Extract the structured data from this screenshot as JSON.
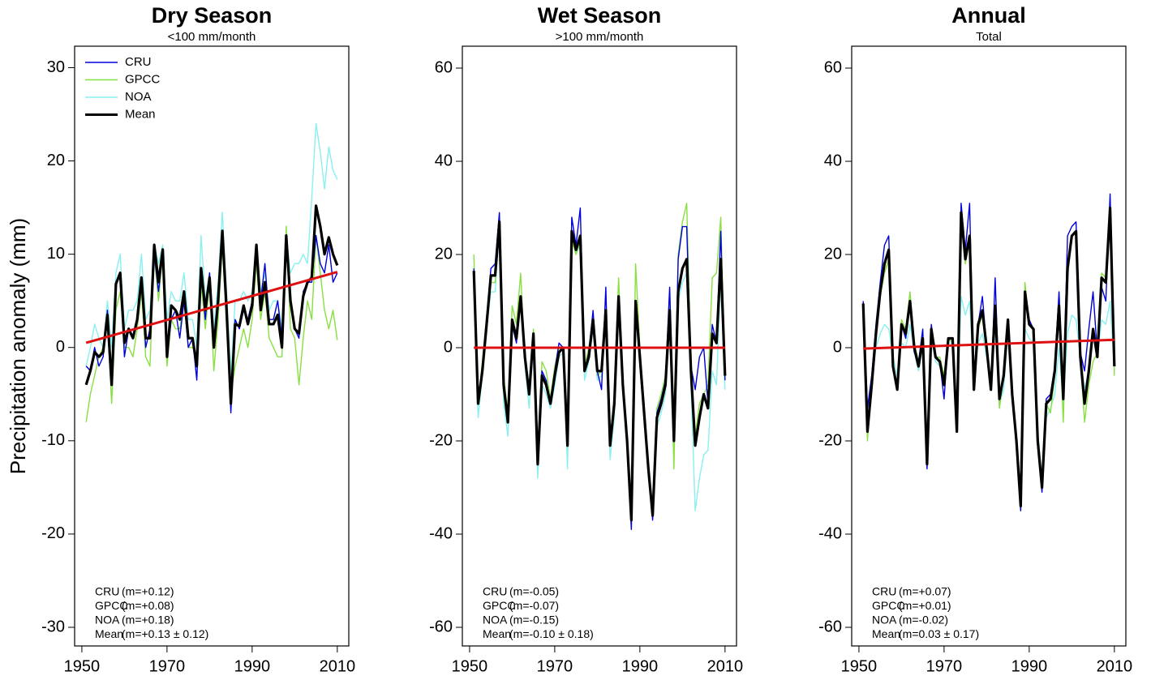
{
  "chart_data": [
    {
      "type": "line",
      "title": "Dry Season",
      "subtitle": "<100 mm/month",
      "ylabel": "Precipitation anomaly (mm)",
      "legend": "top-left",
      "x": [
        1951,
        1952,
        1953,
        1954,
        1955,
        1956,
        1957,
        1958,
        1959,
        1960,
        1961,
        1962,
        1963,
        1964,
        1965,
        1966,
        1967,
        1968,
        1969,
        1970,
        1971,
        1972,
        1973,
        1974,
        1975,
        1976,
        1977,
        1978,
        1979,
        1980,
        1981,
        1982,
        1983,
        1984,
        1985,
        1986,
        1987,
        1988,
        1989,
        1990,
        1991,
        1992,
        1993,
        1994,
        1995,
        1996,
        1997,
        1998,
        1999,
        2000,
        2001,
        2002,
        2003,
        2004,
        2005,
        2006,
        2007,
        2008,
        2009,
        2010
      ],
      "xlim": [
        1948.3,
        2012.7
      ],
      "xticks": [
        1950,
        1970,
        1990,
        2010
      ],
      "ylim": [
        -32,
        32.3
      ],
      "yticks": [
        -30,
        -20,
        -10,
        0,
        10,
        20,
        30
      ],
      "series": [
        {
          "name": "CRU",
          "color": "#0000dd",
          "values": [
            -2,
            -2.5,
            0,
            -2,
            -1,
            4,
            -3,
            7,
            8,
            -1,
            2,
            1,
            3,
            7,
            0,
            2,
            10,
            6,
            10,
            -1,
            3,
            4,
            1,
            5,
            0,
            1,
            -3.5,
            8,
            3,
            8,
            0,
            5,
            12,
            4,
            -7,
            3,
            2,
            4,
            3,
            5,
            11,
            5,
            9,
            3,
            3,
            5,
            1,
            12,
            5,
            2,
            1,
            6,
            7,
            7,
            12,
            9,
            8,
            11,
            7,
            8
          ]
        },
        {
          "name": "GPCC",
          "color": "#88e040",
          "values": [
            -8,
            -5,
            -3,
            -1,
            0,
            3,
            -6,
            4,
            6,
            0,
            0,
            -1,
            2,
            6,
            -1,
            -2,
            10,
            5,
            10,
            -2,
            3,
            2,
            2,
            5,
            0,
            0,
            -1,
            7,
            2,
            7,
            -2.5,
            3,
            11,
            2,
            -5,
            -2,
            0,
            2,
            0,
            3,
            9,
            3,
            6,
            1,
            0,
            -1,
            -1,
            13,
            2,
            1,
            -4,
            1,
            5,
            3,
            12,
            8,
            4,
            2,
            4,
            0.8
          ]
        },
        {
          "name": "NOA",
          "color": "#88f0f0",
          "values": [
            -2,
            0,
            2.5,
            1,
            0,
            5,
            0,
            8,
            10,
            2,
            4,
            4,
            5,
            10,
            3,
            4,
            11,
            9,
            11,
            3,
            6,
            5,
            5,
            8,
            3,
            3,
            0,
            12,
            5,
            8,
            2,
            7,
            14.5,
            6,
            -3,
            5,
            5,
            6,
            5,
            6,
            11,
            6,
            8,
            4,
            5,
            5,
            2,
            12,
            8,
            9,
            9,
            10,
            9,
            16,
            24,
            21,
            17,
            21.5,
            19,
            18
          ]
        },
        {
          "name": "Mean",
          "color": "#000000",
          "values": [
            -4,
            -2.5,
            -0.5,
            -1,
            -0.5,
            3.5,
            -4,
            6.8,
            8,
            0.5,
            2,
            1,
            3,
            7.5,
            1,
            1,
            11,
            7,
            10.5,
            -1,
            4.5,
            4,
            3,
            6,
            1,
            1,
            -2,
            8.5,
            4,
            7.5,
            0,
            5,
            12.5,
            4,
            -6,
            2.5,
            2.3,
            4.5,
            2.5,
            4.5,
            11,
            4,
            7,
            2.5,
            2.5,
            3.5,
            0,
            12,
            5,
            2,
            1.5,
            5.5,
            7,
            7.5,
            15.2,
            13,
            10,
            11.8,
            10,
            8.8
          ]
        }
      ],
      "trend": {
        "color": "#dd1111",
        "x": [
          1951,
          2010
        ],
        "values": [
          0.5,
          8.1
        ]
      },
      "stats": [
        {
          "name": "CRU",
          "label": "(m=+0.12)"
        },
        {
          "name": "GPCC",
          "label": "(m=+0.08)"
        },
        {
          "name": "NOA",
          "label": "(m=+0.18)"
        },
        {
          "name": "Mean",
          "label": "(m=+0.13 ± 0.12)"
        }
      ]
    },
    {
      "type": "line",
      "title": "Wet Season",
      "subtitle": ">100 mm/month",
      "x": [
        1951,
        1952,
        1953,
        1954,
        1955,
        1956,
        1957,
        1958,
        1959,
        1960,
        1961,
        1962,
        1963,
        1964,
        1965,
        1966,
        1967,
        1968,
        1969,
        1970,
        1971,
        1972,
        1973,
        1974,
        1975,
        1976,
        1977,
        1978,
        1979,
        1980,
        1981,
        1982,
        1983,
        1984,
        1985,
        1986,
        1987,
        1988,
        1989,
        1990,
        1991,
        1992,
        1993,
        1994,
        1995,
        1996,
        1997,
        1998,
        1999,
        2000,
        2001,
        2002,
        2003,
        2004,
        2005,
        2006,
        2007,
        2008,
        2009,
        2010
      ],
      "xlim": [
        1948.3,
        2012.7
      ],
      "xticks": [
        1950,
        1970,
        1990,
        2010
      ],
      "ylim": [
        -64,
        64.7
      ],
      "yticks": [
        -60,
        -40,
        -20,
        0,
        20,
        40,
        60
      ],
      "series": [
        {
          "name": "CRU",
          "color": "#0000dd",
          "values": [
            17,
            -12,
            -4,
            6,
            17,
            18,
            29,
            -8,
            -16,
            5,
            1,
            11,
            -2,
            -10,
            3,
            -25,
            -5,
            -7,
            -12,
            -5,
            1,
            0,
            -21,
            28,
            22,
            30,
            -5,
            -1,
            8,
            -5,
            -9,
            13,
            -21,
            -12,
            11,
            -7,
            -20,
            -39,
            9,
            -2,
            -13,
            -26,
            -37,
            -14,
            -11,
            -7,
            13,
            -20,
            19,
            26,
            26,
            -4,
            -9,
            -2,
            0,
            -12,
            5,
            1,
            25,
            -7
          ]
        },
        {
          "name": "GPCC",
          "color": "#88e040",
          "values": [
            20,
            -12,
            -3,
            7,
            14,
            14,
            26,
            -6,
            -14,
            9,
            5,
            16,
            -3,
            -9,
            4,
            -22,
            -3,
            -5,
            -11,
            -4,
            0,
            0,
            -20,
            23,
            20,
            23,
            -4,
            0,
            6,
            -6,
            -5,
            7,
            -20,
            -10,
            15,
            -7,
            -19,
            -36,
            18,
            0,
            -12,
            -25,
            -35,
            -13,
            -10,
            -6,
            10,
            -26,
            20,
            27,
            31,
            -3,
            -19,
            -12,
            -10,
            -8,
            15,
            16,
            28,
            -6
          ]
        },
        {
          "name": "NOA",
          "color": "#88f0f0",
          "values": [
            16,
            -15,
            -6,
            4,
            12,
            12,
            26,
            -12,
            -19,
            4,
            2,
            10,
            -4,
            -13,
            1,
            -28,
            -8,
            -10,
            -13,
            -8,
            -2,
            -1,
            -26,
            24,
            20,
            22,
            -7,
            -3,
            4,
            -7,
            -6,
            6,
            -24,
            -15,
            9,
            -9,
            -22,
            -37,
            8,
            -4,
            -16,
            -28,
            -36,
            -17,
            -14,
            -10,
            6,
            -23,
            10,
            14,
            16,
            -8,
            -35,
            -28,
            -23,
            -22,
            -5,
            -8,
            15,
            -9
          ]
        },
        {
          "name": "Mean",
          "color": "#000000",
          "values": [
            16.5,
            -12,
            -5,
            5,
            15.5,
            15.5,
            27,
            -8,
            -16,
            6,
            2,
            11,
            -2,
            -10,
            3,
            -25,
            -6,
            -8,
            -12,
            -6,
            -1,
            0,
            -21,
            25,
            21,
            24,
            -5,
            -2,
            6,
            -5,
            -5,
            8,
            -21,
            -12,
            11,
            -8,
            -20,
            -37,
            10,
            -2,
            -14,
            -26,
            -36,
            -15,
            -12,
            -8,
            8,
            -20,
            12,
            17,
            19,
            -5,
            -21,
            -15,
            -10,
            -13,
            3,
            1,
            19,
            -6
          ]
        }
      ],
      "trend": {
        "color": "#dd1111",
        "x": [
          1951,
          2010
        ],
        "values": [
          0,
          0
        ]
      },
      "stats": [
        {
          "name": "CRU",
          "label": "(m=-0.05)"
        },
        {
          "name": "GPCC",
          "label": "(m=-0.07)"
        },
        {
          "name": "NOA",
          "label": "(m=-0.15)"
        },
        {
          "name": "Mean",
          "label": "(m=-0.10 ± 0.18)"
        }
      ]
    },
    {
      "type": "line",
      "title": "Annual",
      "subtitle": "Total",
      "x": [
        1951,
        1952,
        1953,
        1954,
        1955,
        1956,
        1957,
        1958,
        1959,
        1960,
        1961,
        1962,
        1963,
        1964,
        1965,
        1966,
        1967,
        1968,
        1969,
        1970,
        1971,
        1972,
        1973,
        1974,
        1975,
        1976,
        1977,
        1978,
        1979,
        1980,
        1981,
        1982,
        1983,
        1984,
        1985,
        1986,
        1987,
        1988,
        1989,
        1990,
        1991,
        1992,
        1993,
        1994,
        1995,
        1996,
        1997,
        1998,
        1999,
        2000,
        2001,
        2002,
        2003,
        2004,
        2005,
        2006,
        2007,
        2008,
        2009,
        2010
      ],
      "xlim": [
        1948.3,
        2012.7
      ],
      "xticks": [
        1950,
        1970,
        1990,
        2010
      ],
      "ylim": [
        -64,
        64.7
      ],
      "yticks": [
        -60,
        -40,
        -20,
        0,
        20,
        40,
        60
      ],
      "series": [
        {
          "name": "CRU",
          "color": "#0000dd",
          "values": [
            10,
            -13,
            -6,
            5,
            14,
            22,
            24,
            -4,
            -9,
            5,
            2,
            10,
            -1,
            -3,
            4,
            -26,
            5,
            -2,
            -3,
            -11,
            2,
            2,
            -18,
            31,
            21,
            31,
            -9,
            5,
            11,
            0,
            -9,
            15,
            -11,
            -5,
            6,
            -10,
            -21,
            -35,
            12,
            6,
            4,
            -20,
            -31,
            -11,
            -10,
            -4,
            12,
            -10,
            24,
            26,
            27,
            -1,
            -5,
            4,
            12,
            -1,
            13,
            10,
            33,
            -4
          ]
        },
        {
          "name": "GPCC",
          "color": "#88e040",
          "values": [
            9,
            -20,
            -7,
            4,
            11,
            16,
            19,
            -4,
            -8,
            6,
            4,
            12,
            1,
            -3,
            1,
            -24,
            3,
            -2,
            -2,
            -6,
            2,
            1,
            -18,
            27,
            18,
            23,
            -9,
            4,
            7,
            -1,
            -8,
            6,
            -13,
            -6,
            5,
            -10,
            -22,
            -33,
            14,
            5,
            4,
            -20,
            -29,
            -12,
            -14,
            -6,
            8,
            -16,
            15,
            24,
            25,
            -2,
            -16,
            -8,
            -3,
            -1,
            16,
            15,
            29,
            -6
          ]
        },
        {
          "name": "NOA",
          "color": "#88f0f0",
          "values": [
            8,
            -16,
            -8,
            0,
            3,
            5,
            4,
            -2,
            -6,
            1,
            0,
            5,
            -1,
            -5,
            0,
            -25,
            2,
            -3,
            -4,
            -8,
            1,
            1,
            -17,
            11,
            7,
            10,
            -7,
            1,
            3,
            -2,
            -7,
            4,
            -12,
            -9,
            3,
            -9,
            -21,
            -31,
            4,
            2,
            1,
            -18,
            -28,
            -15,
            -13,
            -10,
            0,
            -12,
            3,
            7,
            6,
            -2,
            -9,
            -5,
            4,
            -2,
            6,
            5,
            10,
            -5
          ]
        },
        {
          "name": "Mean",
          "color": "#000000",
          "values": [
            9.5,
            -18,
            -8,
            3,
            12,
            18,
            21,
            -4,
            -9,
            5,
            3,
            10,
            0,
            -4,
            2,
            -25,
            4,
            -2,
            -3,
            -8,
            2,
            2,
            -18,
            29,
            19,
            24,
            -9,
            5,
            8,
            0,
            -9,
            9,
            -11,
            -6,
            6,
            -10,
            -20,
            -34,
            12,
            5,
            4,
            -20,
            -30,
            -12,
            -11,
            -5,
            9,
            -11,
            17,
            24,
            25,
            -2,
            -12,
            -5,
            4,
            -2,
            15,
            14,
            30,
            -4
          ]
        }
      ],
      "trend": {
        "color": "#dd1111",
        "x": [
          1951,
          2010
        ],
        "values": [
          -0.2,
          1.7
        ]
      },
      "stats": [
        {
          "name": "CRU",
          "label": "(m=+0.07)"
        },
        {
          "name": "GPCC",
          "label": "(m=+0.01)"
        },
        {
          "name": "NOA",
          "label": "(m=-0.02)"
        },
        {
          "name": "Mean",
          "label": "(m=0.03 ± 0.17)"
        }
      ]
    }
  ]
}
